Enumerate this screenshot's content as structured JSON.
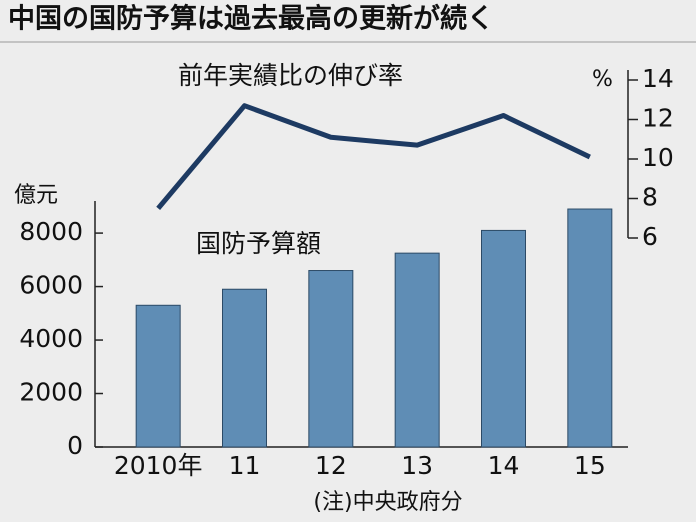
{
  "chart_data": {
    "type": "bar",
    "title": "中国の国防予算は過去最高の更新が続く",
    "note": "(注)中央政府分",
    "categories": [
      "2010年",
      "11",
      "12",
      "13",
      "14",
      "15"
    ],
    "y_unit": "億元",
    "y2_unit": "%",
    "ylim": [
      0,
      9200
    ],
    "yticks": [
      0,
      2000,
      4000,
      6000,
      8000
    ],
    "y2lim": [
      6,
      14
    ],
    "y2ticks": [
      6,
      8,
      10,
      12,
      14
    ],
    "series": [
      {
        "name": "国防予算額",
        "type": "bar",
        "color": "#5f8db5",
        "values": [
          5300,
          5900,
          6600,
          7250,
          8100,
          8900
        ]
      },
      {
        "name": "前年実績比の伸び率",
        "type": "line",
        "axis": "y2",
        "color": "#1d3a62",
        "values": [
          7.5,
          12.7,
          11.1,
          10.7,
          12.2,
          10.1
        ]
      }
    ]
  }
}
